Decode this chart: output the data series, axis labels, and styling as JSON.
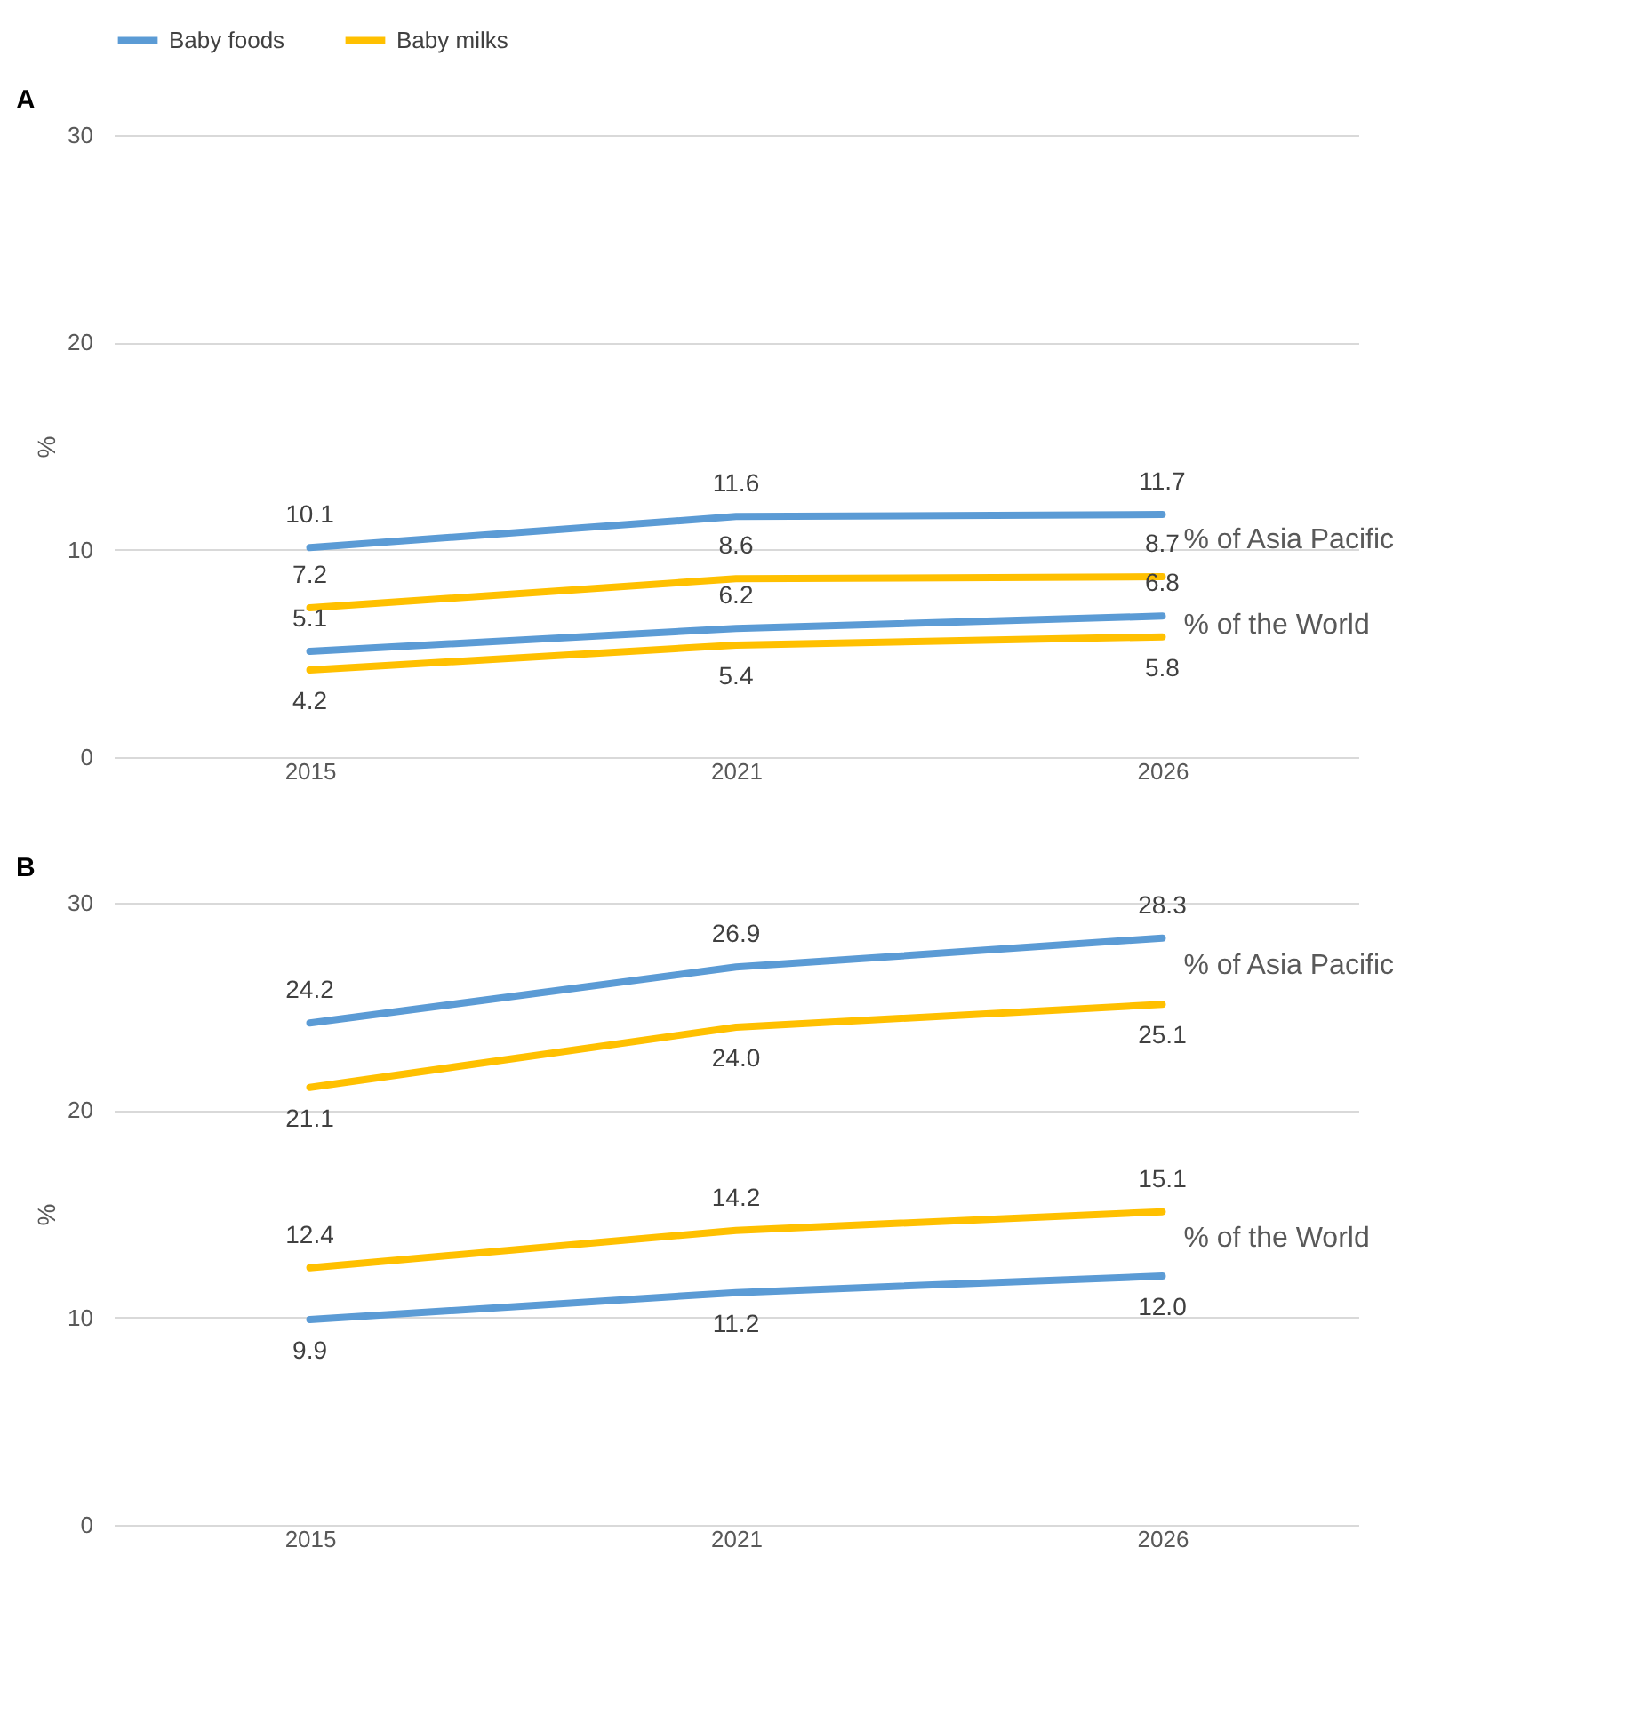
{
  "chart_data": [
    {
      "type": "line",
      "title": "A",
      "ylabel": "%",
      "categories": [
        "2015",
        "2021",
        "2026"
      ],
      "ylim": [
        0,
        30
      ],
      "yticks": [
        0,
        10,
        20,
        30
      ],
      "grid": "y",
      "legend": "top",
      "marker": "none",
      "line_style": "solid",
      "series": [
        {
          "name": "Baby foods",
          "color": "#5b9bd5",
          "values": [
            10.1,
            11.6,
            11.7
          ],
          "value_labels": [
            "10.1",
            "11.6",
            "11.7"
          ]
        },
        {
          "name": "Baby milks",
          "color": "#ffc000",
          "values": [
            7.2,
            8.6,
            8.7
          ],
          "value_labels": [
            "7.2",
            "8.6",
            "8.7"
          ]
        },
        {
          "color": "#5b9bd5",
          "values": [
            5.1,
            6.2,
            6.8
          ],
          "value_labels": [
            "5.1",
            "6.2",
            "6.8"
          ]
        },
        {
          "color": "#ffc000",
          "values": [
            4.2,
            5.4,
            5.8
          ],
          "value_labels": [
            "4.2",
            "5.4",
            "5.8"
          ]
        }
      ],
      "annotations": [
        "% of Asia Pacific",
        "% of the World"
      ]
    },
    {
      "type": "line",
      "title": "B",
      "ylabel": "%",
      "categories": [
        "2015",
        "2021",
        "2026"
      ],
      "ylim": [
        0,
        30
      ],
      "yticks": [
        0,
        10,
        20,
        30
      ],
      "grid": "y",
      "marker": "none",
      "line_style": "solid",
      "series": [
        {
          "color": "#5b9bd5",
          "values": [
            24.2,
            26.9,
            28.3
          ],
          "value_labels": [
            "24.2",
            "26.9",
            "28.3"
          ]
        },
        {
          "color": "#ffc000",
          "values": [
            21.1,
            24.0,
            25.1
          ],
          "value_labels": [
            "21.1",
            "24.0",
            "25.1"
          ]
        },
        {
          "color": "#ffc000",
          "values": [
            12.4,
            14.2,
            15.1
          ],
          "value_labels": [
            "12.4",
            "14.2",
            "15.1"
          ]
        },
        {
          "color": "#5b9bd5",
          "values": [
            9.9,
            11.2,
            12.0
          ],
          "value_labels": [
            "9.9",
            "11.2",
            "12.0"
          ]
        }
      ],
      "annotations": [
        "% of Asia Pacific",
        "% of the World"
      ]
    }
  ]
}
